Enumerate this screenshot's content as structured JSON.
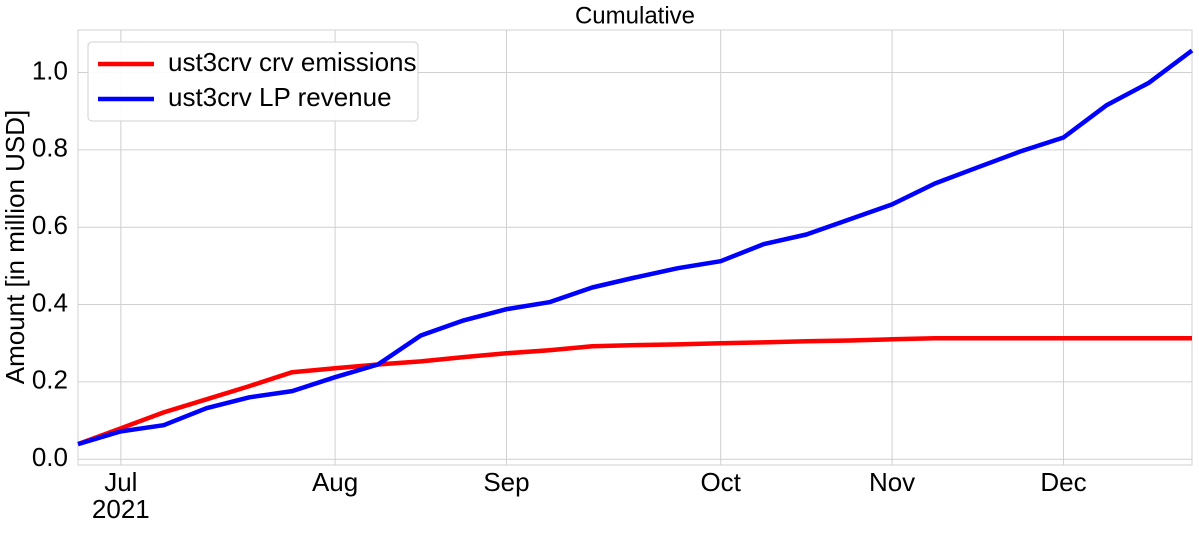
{
  "chart_data": {
    "type": "line",
    "title": "Cumulative",
    "y_label": "Amount [in million USD]",
    "categories": [
      null,
      "Jul",
      null,
      null,
      null,
      null,
      "Aug",
      null,
      null,
      null,
      "Sep",
      null,
      null,
      null,
      null,
      "Oct",
      null,
      null,
      null,
      "Nov",
      null,
      null,
      null,
      "Dec",
      null,
      null,
      null
    ],
    "year_label": "2021",
    "series": [
      {
        "name": "ust3crv crv emissions",
        "color": "#ff0000",
        "values": [
          0.039,
          0.08,
          0.121,
          0.155,
          0.189,
          0.225,
          0.235,
          0.245,
          0.253,
          0.264,
          0.274,
          0.282,
          0.292,
          0.295,
          0.297,
          0.3,
          0.302,
          0.305,
          0.307,
          0.31,
          0.313,
          0.313,
          0.313,
          0.313,
          0.313,
          0.313,
          0.313
        ]
      },
      {
        "name": "ust3crv LP revenue",
        "color": "#0000ff",
        "values": [
          0.039,
          0.072,
          0.088,
          0.132,
          0.16,
          0.176,
          0.212,
          0.245,
          0.32,
          0.359,
          0.388,
          0.406,
          0.444,
          0.47,
          0.494,
          0.512,
          0.556,
          0.581,
          0.62,
          0.659,
          0.713,
          0.755,
          0.796,
          0.832,
          0.915,
          0.974,
          1.057
        ]
      }
    ],
    "ylim": [
      -0.015,
      1.11
    ],
    "yticks": [
      {
        "value": 0,
        "label": "0.0"
      },
      0.2,
      0.4,
      0.6,
      0.8,
      {
        "value": 1,
        "label": "1.0"
      }
    ],
    "grid": true,
    "legend": "upper left"
  }
}
